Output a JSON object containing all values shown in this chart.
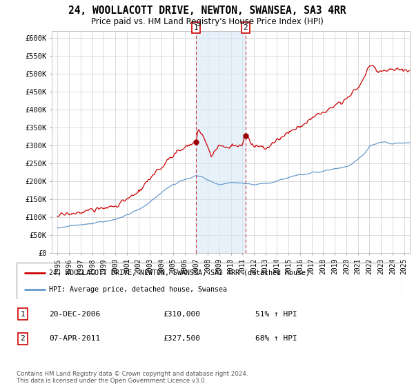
{
  "title": "24, WOOLLACOTT DRIVE, NEWTON, SWANSEA, SA3 4RR",
  "subtitle": "Price paid vs. HM Land Registry's House Price Index (HPI)",
  "ylabel_ticks": [
    "£0",
    "£50K",
    "£100K",
    "£150K",
    "£200K",
    "£250K",
    "£300K",
    "£350K",
    "£400K",
    "£450K",
    "£500K",
    "£550K",
    "£600K"
  ],
  "ytick_values": [
    0,
    50000,
    100000,
    150000,
    200000,
    250000,
    300000,
    350000,
    400000,
    450000,
    500000,
    550000,
    600000
  ],
  "ylim": [
    0,
    620000
  ],
  "sale1_date": 2006.97,
  "sale1_price": 310000,
  "sale2_date": 2011.27,
  "sale2_price": 327500,
  "legend_entry1": "24, WOOLLACOTT DRIVE, NEWTON, SWANSEA, SA3 4RR (detached house)",
  "legend_entry2": "HPI: Average price, detached house, Swansea",
  "table_row1": [
    "1",
    "20-DEC-2006",
    "£310,000",
    "51% ↑ HPI"
  ],
  "table_row2": [
    "2",
    "07-APR-2011",
    "£327,500",
    "68% ↑ HPI"
  ],
  "footer": "Contains HM Land Registry data © Crown copyright and database right 2024.\nThis data is licensed under the Open Government Licence v3.0.",
  "line_color_red": "#cc0000",
  "line_color_blue": "#6699cc",
  "shade_color": "#d6e8f7",
  "marker_color_red": "#990000",
  "xmin": 1994.5,
  "xmax": 2025.5,
  "background_color": "#ffffff",
  "red_anchors_x": [
    1995,
    1995.5,
    1996,
    1996.5,
    1997,
    1997.5,
    1998,
    1998.5,
    1999,
    1999.5,
    2000,
    2000.5,
    2001,
    2001.5,
    2002,
    2002.5,
    2003,
    2003.5,
    2004,
    2004.5,
    2005,
    2005.5,
    2006,
    2006.5,
    2006.97,
    2007.2,
    2007.5,
    2008,
    2008.3,
    2008.6,
    2009,
    2009.5,
    2010,
    2010.5,
    2011,
    2011.27,
    2011.5,
    2012,
    2012.5,
    2013,
    2013.5,
    2014,
    2014.5,
    2015,
    2015.5,
    2016,
    2016.5,
    2017,
    2017.5,
    2018,
    2018.5,
    2019,
    2019.5,
    2020,
    2020.5,
    2021,
    2021.5,
    2022,
    2022.3,
    2022.6,
    2023,
    2023.5,
    2024,
    2024.5,
    2025,
    2025.5
  ],
  "red_anchors_y": [
    103000,
    106000,
    108000,
    112000,
    113000,
    117000,
    120000,
    122000,
    125000,
    128000,
    132000,
    140000,
    148000,
    158000,
    170000,
    188000,
    205000,
    222000,
    240000,
    258000,
    270000,
    285000,
    295000,
    305000,
    310000,
    345000,
    330000,
    295000,
    268000,
    285000,
    300000,
    295000,
    300000,
    300000,
    300000,
    327500,
    320000,
    295000,
    300000,
    290000,
    300000,
    315000,
    325000,
    335000,
    345000,
    355000,
    365000,
    375000,
    385000,
    395000,
    405000,
    415000,
    420000,
    430000,
    445000,
    460000,
    490000,
    520000,
    525000,
    510000,
    505000,
    510000,
    515000,
    515000,
    510000,
    510000
  ],
  "blue_anchors_x": [
    1995,
    1995.5,
    1996,
    1996.5,
    1997,
    1997.5,
    1998,
    1998.5,
    1999,
    1999.5,
    2000,
    2000.5,
    2001,
    2001.5,
    2002,
    2002.5,
    2003,
    2003.5,
    2004,
    2004.5,
    2005,
    2005.5,
    2006,
    2006.5,
    2007,
    2007.5,
    2008,
    2008.5,
    2009,
    2009.5,
    2010,
    2010.5,
    2011,
    2011.5,
    2012,
    2012.5,
    2013,
    2013.5,
    2014,
    2014.5,
    2015,
    2015.5,
    2016,
    2016.5,
    2017,
    2017.5,
    2018,
    2018.5,
    2019,
    2019.5,
    2020,
    2020.5,
    2021,
    2021.5,
    2022,
    2022.5,
    2023,
    2023.3,
    2023.6,
    2024,
    2024.5,
    2025,
    2025.5
  ],
  "blue_anchors_y": [
    70000,
    72000,
    74000,
    76000,
    78000,
    80000,
    82000,
    85000,
    87000,
    90000,
    94000,
    99000,
    105000,
    112000,
    120000,
    130000,
    142000,
    155000,
    168000,
    180000,
    190000,
    198000,
    205000,
    210000,
    215000,
    212000,
    205000,
    195000,
    190000,
    192000,
    195000,
    197000,
    195000,
    192000,
    190000,
    192000,
    194000,
    196000,
    200000,
    205000,
    210000,
    215000,
    218000,
    220000,
    222000,
    225000,
    228000,
    232000,
    235000,
    238000,
    242000,
    248000,
    260000,
    275000,
    295000,
    305000,
    308000,
    310000,
    308000,
    305000,
    308000,
    308000,
    306000
  ]
}
